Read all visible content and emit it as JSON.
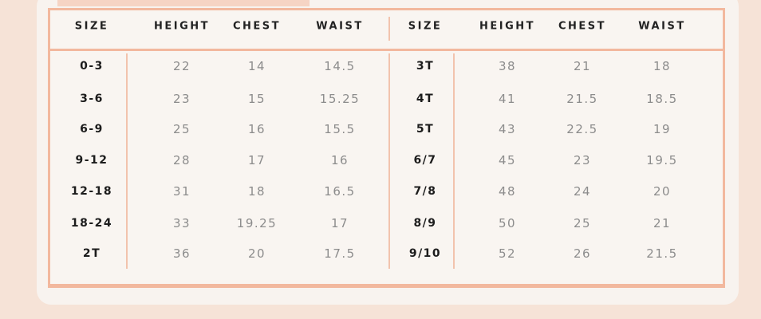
{
  "headers": [
    "SIZE",
    "HEIGHT",
    "CHEST",
    "WAIST",
    "SIZE",
    "HEIGHT",
    "CHEST",
    "WAIST"
  ],
  "left_rows": [
    [
      "0-3",
      "22",
      "14",
      "14.5"
    ],
    [
      "3-6",
      "23",
      "15",
      "15.25"
    ],
    [
      "6-9",
      "25",
      "16",
      "15.5"
    ],
    [
      "9-12",
      "28",
      "17",
      "16"
    ],
    [
      "12-18",
      "31",
      "18",
      "16.5"
    ],
    [
      "18-24",
      "33",
      "19.25",
      "17"
    ],
    [
      "2T",
      "36",
      "20",
      "17.5"
    ]
  ],
  "right_rows": [
    [
      "3T",
      "38",
      "21",
      "18"
    ],
    [
      "4T",
      "41",
      "21.5",
      "18.5"
    ],
    [
      "5T",
      "43",
      "22.5",
      "19"
    ],
    [
      "6/7",
      "45",
      "23",
      "19.5"
    ],
    [
      "7/8",
      "48",
      "24",
      "20"
    ],
    [
      "8/9",
      "50",
      "25",
      "21"
    ],
    [
      "9/10",
      "52",
      "26",
      "21.5"
    ]
  ],
  "colors": {
    "border": "#f2b89e",
    "background": "#f6e3d7",
    "card": "#f8f3ef"
  }
}
